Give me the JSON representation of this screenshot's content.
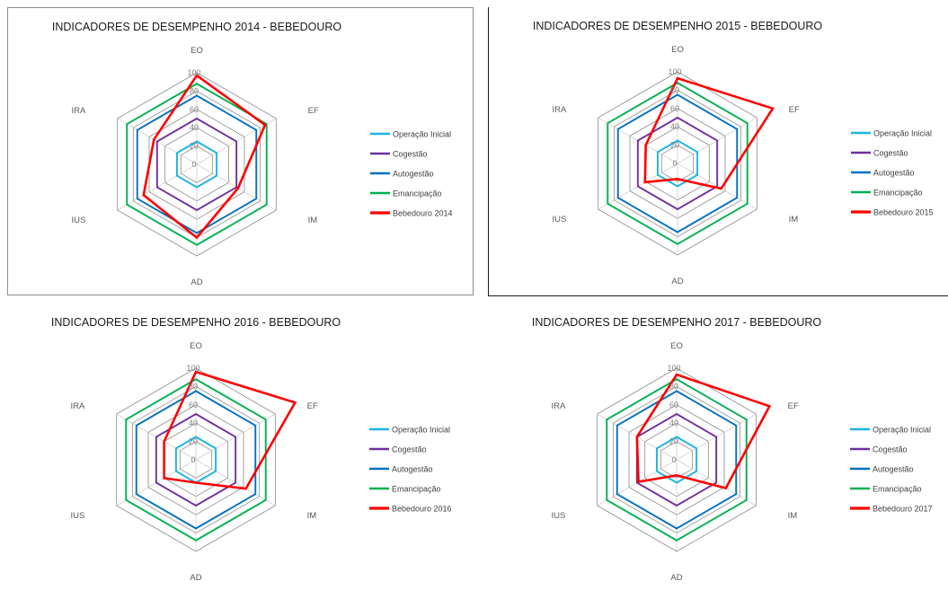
{
  "chart_data": [
    {
      "type": "radar",
      "title": "INDICADORES DE DESEMPENHO 2014 - BEBEDOURO",
      "axes": [
        "EO",
        "EF",
        "IM",
        "AD",
        "IUS",
        "IRA"
      ],
      "radial_ticks": [
        0,
        20,
        40,
        60,
        80,
        100
      ],
      "rlim": [
        0,
        100
      ],
      "legend_position": "right",
      "series": [
        {
          "name": "Operação Inicial",
          "color": "#1cb3e6",
          "values": [
            25,
            25,
            25,
            25,
            25,
            25
          ]
        },
        {
          "name": "Cogestão",
          "color": "#7030a0",
          "values": [
            50,
            50,
            50,
            50,
            50,
            50
          ]
        },
        {
          "name": "Autogestão",
          "color": "#0070c0",
          "values": [
            75,
            75,
            75,
            75,
            75,
            75
          ]
        },
        {
          "name": "Emancipação",
          "color": "#00b050",
          "values": [
            88,
            88,
            88,
            88,
            88,
            88
          ]
        },
        {
          "name": "Bebedouro 2014",
          "color": "#ff0000",
          "values": [
            97,
            86,
            52,
            80,
            67,
            54
          ]
        }
      ]
    },
    {
      "type": "radar",
      "title": "INDICADORES DE DESEMPENHO 2015 - BEBEDOURO",
      "axes": [
        "EO",
        "EF",
        "IM",
        "AD",
        "IUS",
        "IRA"
      ],
      "radial_ticks": [
        0,
        20,
        40,
        60,
        80,
        100
      ],
      "rlim": [
        0,
        100
      ],
      "legend_position": "right",
      "series": [
        {
          "name": "Operação Inicial",
          "color": "#1cb3e6",
          "values": [
            25,
            25,
            25,
            25,
            25,
            25
          ]
        },
        {
          "name": "Cogestão",
          "color": "#7030a0",
          "values": [
            50,
            50,
            50,
            50,
            50,
            50
          ]
        },
        {
          "name": "Autogestão",
          "color": "#0070c0",
          "values": [
            75,
            75,
            75,
            75,
            75,
            75
          ]
        },
        {
          "name": "Emancipação",
          "color": "#00b050",
          "values": [
            88,
            88,
            88,
            88,
            88,
            88
          ]
        },
        {
          "name": "Bebedouro 2015",
          "color": "#ff0000",
          "values": [
            93,
            120,
            55,
            17,
            41,
            40
          ]
        }
      ]
    },
    {
      "type": "radar",
      "title": "INDICADORES DE DESEMPENHO 2016 - BEBEDOURO",
      "axes": [
        "EO",
        "EF",
        "IM",
        "AD",
        "IUS",
        "IRA"
      ],
      "radial_ticks": [
        0,
        20,
        40,
        60,
        80,
        100
      ],
      "rlim": [
        0,
        100
      ],
      "legend_position": "right",
      "series": [
        {
          "name": "Operação Inicial",
          "color": "#1cb3e6",
          "values": [
            25,
            25,
            25,
            25,
            25,
            25
          ]
        },
        {
          "name": "Cogestão",
          "color": "#7030a0",
          "values": [
            50,
            50,
            50,
            50,
            50,
            50
          ]
        },
        {
          "name": "Autogestão",
          "color": "#0070c0",
          "values": [
            75,
            75,
            75,
            75,
            75,
            75
          ]
        },
        {
          "name": "Emancipação",
          "color": "#00b050",
          "values": [
            88,
            88,
            88,
            88,
            88,
            88
          ]
        },
        {
          "name": "Bebedouro 2016",
          "color": "#ff0000",
          "values": [
            96,
            125,
            63,
            25,
            40,
            40
          ]
        }
      ]
    },
    {
      "type": "radar",
      "title": "INDICADORES DE DESEMPENHO 2017 - BEBEDOURO",
      "axes": [
        "EO",
        "EF",
        "IM",
        "AD",
        "IUS",
        "IRA"
      ],
      "radial_ticks": [
        0,
        20,
        40,
        60,
        80,
        100
      ],
      "rlim": [
        0,
        100
      ],
      "legend_position": "right",
      "series": [
        {
          "name": "Operação Inicial",
          "color": "#1cb3e6",
          "values": [
            25,
            25,
            25,
            25,
            25,
            25
          ]
        },
        {
          "name": "Cogestão",
          "color": "#7030a0",
          "values": [
            50,
            50,
            50,
            50,
            50,
            50
          ]
        },
        {
          "name": "Autogestão",
          "color": "#0070c0",
          "values": [
            75,
            75,
            75,
            75,
            75,
            75
          ]
        },
        {
          "name": "Emancipação",
          "color": "#00b050",
          "values": [
            88,
            88,
            88,
            88,
            88,
            88
          ]
        },
        {
          "name": "Bebedouro 2017",
          "color": "#ff0000",
          "values": [
            93,
            117,
            62,
            17,
            48,
            50
          ]
        }
      ]
    }
  ]
}
